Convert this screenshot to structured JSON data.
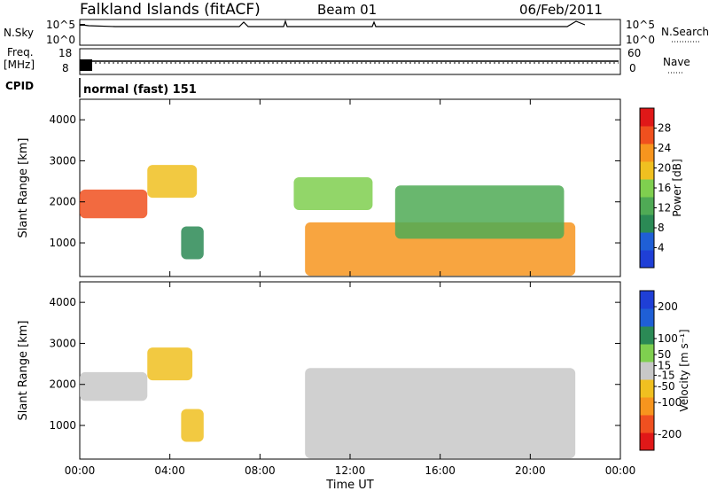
{
  "header": {
    "title": "Falkland Islands (fitACF)",
    "beam": "Beam 01",
    "date": "06/Feb/2011"
  },
  "panels": {
    "nsky": {
      "label": "N.Sky",
      "tick_top": "10^5",
      "tick_bottom": "10^0",
      "right_label": "N.Search",
      "right_tick_top": "10^5",
      "right_tick_bottom": "10^0"
    },
    "freq": {
      "label_line1": "Freq.",
      "label_line2": "[MHz]",
      "tick_top": "18",
      "tick_bottom": "8",
      "right_label": "Nave",
      "right_tick_top": "60",
      "right_tick_bottom": "0"
    },
    "cpid": {
      "label": "CPID",
      "text": "normal (fast) 151"
    }
  },
  "colors": {
    "power_scale": [
      "#1f3fd6",
      "#1f5fd6",
      "#2b8a55",
      "#4faa55",
      "#7fcf4f",
      "#f0c020",
      "#f7951e",
      "#f0501e",
      "#e01818"
    ],
    "velocity_scale": [
      "#e01818",
      "#f05020",
      "#f7951e",
      "#f0c020",
      "#c8c8c8",
      "#7fcf4f",
      "#2b8a55",
      "#1f5fd6",
      "#1f3fd6"
    ]
  },
  "chart_data": [
    {
      "type": "heatmap",
      "name": "power",
      "ylabel": "Slant Range [km]",
      "xlabel": "Time UT",
      "x_ticks": [
        "00:00",
        "04:00",
        "08:00",
        "12:00",
        "16:00",
        "20:00",
        "00:00"
      ],
      "y_ticks": [
        1000,
        2000,
        3000,
        4000
      ],
      "ylim": [
        180,
        4500
      ],
      "xlim_hours": [
        0,
        24
      ],
      "colorbar": {
        "label": "Power [dB]",
        "ticks": [
          4,
          8,
          12,
          16,
          20,
          24,
          28
        ],
        "range": [
          0,
          32
        ]
      },
      "regions": [
        {
          "t0": 0.0,
          "t1": 3.0,
          "r0": 1600,
          "r1": 2300,
          "level": 28
        },
        {
          "t0": 3.0,
          "t1": 5.2,
          "r0": 2100,
          "r1": 2900,
          "level": 20
        },
        {
          "t0": 4.5,
          "t1": 5.5,
          "r0": 600,
          "r1": 1400,
          "level": 8
        },
        {
          "t0": 9.5,
          "t1": 13.0,
          "r0": 1800,
          "r1": 2600,
          "level": 16
        },
        {
          "t0": 10.0,
          "t1": 22.0,
          "r0": 200,
          "r1": 1500,
          "level": 24
        },
        {
          "t0": 14.0,
          "t1": 21.5,
          "r0": 1100,
          "r1": 2400,
          "level": 14
        }
      ]
    },
    {
      "type": "heatmap",
      "name": "velocity",
      "ylabel": "Slant Range [km]",
      "xlabel": "Time UT",
      "x_ticks": [
        "00:00",
        "04:00",
        "08:00",
        "12:00",
        "16:00",
        "20:00",
        "00:00"
      ],
      "y_ticks": [
        1000,
        2000,
        3000,
        4000
      ],
      "ylim": [
        180,
        4500
      ],
      "xlim_hours": [
        0,
        24
      ],
      "colorbar": {
        "label": "Velocity [m s⁻¹]",
        "ticks": [
          -200,
          -100,
          -50,
          -15,
          15,
          50,
          100,
          200
        ],
        "range": [
          -250,
          250
        ]
      },
      "regions": [
        {
          "t0": 0.0,
          "t1": 3.0,
          "r0": 1600,
          "r1": 2300,
          "level": 0
        },
        {
          "t0": 3.0,
          "t1": 5.0,
          "r0": 2100,
          "r1": 2900,
          "level": -50
        },
        {
          "t0": 4.5,
          "t1": 5.5,
          "r0": 600,
          "r1": 1400,
          "level": -50
        },
        {
          "t0": 10.0,
          "t1": 22.0,
          "r0": 200,
          "r1": 2400,
          "level": 0
        }
      ]
    }
  ]
}
